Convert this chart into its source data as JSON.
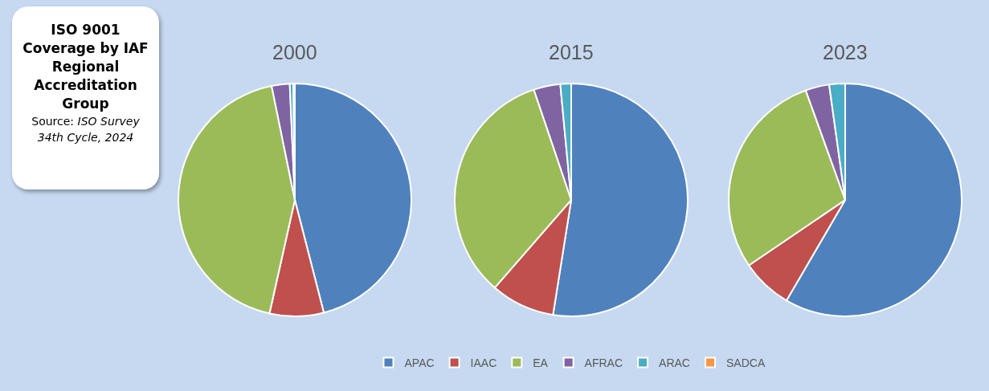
{
  "chart_data": [
    {
      "type": "other",
      "title": "ISO 9001 Coverage by IAF Regional Accreditation Group",
      "annotations": [
        "Source:",
        "ISO Survey 34th Cycle, 2024"
      ]
    },
    {
      "type": "pie",
      "title": "2000",
      "categories": [
        "APAC",
        "IAAC",
        "EA",
        "AFRAC",
        "ARAC",
        "SADCA"
      ],
      "values": [
        46,
        7.5,
        43.3,
        2.5,
        0.5,
        0.2
      ],
      "colors": [
        "#4f81bd",
        "#c0504d",
        "#9bbb59",
        "#8064a2",
        "#4bacc6",
        "#f79646"
      ],
      "legend": "bottom"
    },
    {
      "type": "pie",
      "title": "2015",
      "categories": [
        null,
        null,
        null,
        null,
        null,
        null
      ],
      "values": [
        52.5,
        8.9,
        33.4,
        3.7,
        1.5,
        0
      ],
      "colors": [
        "#4f81bd",
        "#c0504d",
        "#9bbb59",
        "#8064a2",
        "#4bacc6",
        "#f79646"
      ]
    },
    {
      "type": "pie",
      "title": "2023",
      "categories": [
        null,
        null,
        null,
        null,
        null,
        null
      ],
      "values": [
        58.4,
        7.1,
        29,
        3.3,
        2.2,
        0
      ],
      "colors": [
        "#4f81bd",
        "#c0504d",
        "#9bbb59",
        "#8064a2",
        "#4bacc6",
        "#f79646"
      ]
    }
  ]
}
